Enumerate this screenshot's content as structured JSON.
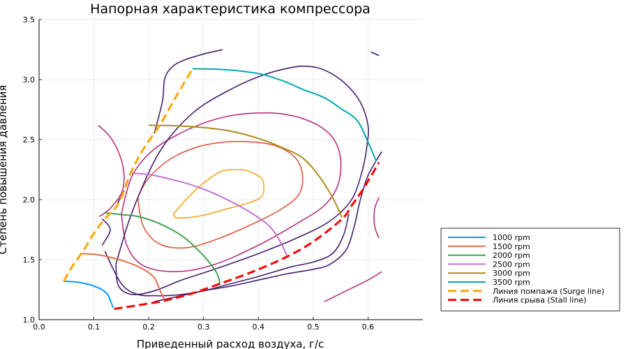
{
  "chart_data": {
    "type": "line",
    "title": "Напорная характеристика компрессора",
    "xlabel": "Приведенный расход воздуха, г/с",
    "ylabel": "Степень повышения давления",
    "xlim": [
      0.0,
      0.7
    ],
    "ylim": [
      1.0,
      3.5
    ],
    "xticks": [
      "0.0",
      "0.1",
      "0.2",
      "0.3",
      "0.4",
      "0.5",
      "0.6"
    ],
    "yticks": [
      "1.0",
      "1.5",
      "2.0",
      "2.5",
      "3.0",
      "3.5"
    ],
    "grid": true,
    "legend_position": "outside-bottom-right",
    "series": [
      {
        "name": "1000 rpm",
        "color": "#009AFA",
        "style": "solid",
        "x": [
          0.045,
          0.065,
          0.085,
          0.1,
          0.115,
          0.125,
          0.13,
          0.135
        ],
        "y": [
          1.32,
          1.315,
          1.3,
          1.28,
          1.25,
          1.21,
          1.16,
          1.1
        ]
      },
      {
        "name": "1500 rpm",
        "color": "#E36F47",
        "style": "solid",
        "x": [
          0.075,
          0.1,
          0.13,
          0.16,
          0.19,
          0.21,
          0.22,
          0.23
        ],
        "y": [
          1.55,
          1.545,
          1.52,
          1.48,
          1.42,
          1.35,
          1.25,
          1.15
        ]
      },
      {
        "name": "2000 rpm",
        "color": "#3EA44E",
        "style": "solid",
        "x": [
          0.12,
          0.15,
          0.18,
          0.22,
          0.26,
          0.29,
          0.31,
          0.325,
          0.33
        ],
        "y": [
          1.89,
          1.875,
          1.86,
          1.8,
          1.7,
          1.58,
          1.48,
          1.38,
          1.29
        ]
      },
      {
        "name": "2500 rpm",
        "color": "#C271D2",
        "style": "solid",
        "x": [
          0.167,
          0.2,
          0.24,
          0.28,
          0.32,
          0.36,
          0.39,
          0.42,
          0.44,
          0.453
        ],
        "y": [
          2.22,
          2.21,
          2.17,
          2.12,
          2.05,
          1.96,
          1.88,
          1.78,
          1.65,
          1.52
        ]
      },
      {
        "name": "3000 rpm",
        "color": "#AC8D18",
        "style": "solid",
        "x": [
          0.2,
          0.25,
          0.3,
          0.35,
          0.4,
          0.44,
          0.48,
          0.51,
          0.535,
          0.553
        ],
        "y": [
          2.62,
          2.615,
          2.6,
          2.57,
          2.51,
          2.44,
          2.35,
          2.2,
          2.02,
          1.85
        ]
      },
      {
        "name": "3500 rpm",
        "color": "#00A9AD",
        "style": "solid",
        "x": [
          0.28,
          0.33,
          0.37,
          0.41,
          0.45,
          0.48,
          0.52,
          0.55,
          0.58,
          0.6,
          0.615
        ],
        "y": [
          3.09,
          3.085,
          3.07,
          3.04,
          2.98,
          2.92,
          2.85,
          2.76,
          2.66,
          2.48,
          2.32
        ]
      },
      {
        "name": "Линия помпажа (Surge line)",
        "color": "#FFA500",
        "style": "dashed",
        "x": [
          0.045,
          0.06,
          0.08,
          0.1,
          0.12,
          0.145,
          0.167,
          0.19,
          0.22,
          0.25,
          0.28
        ],
        "y": [
          1.32,
          1.44,
          1.57,
          1.72,
          1.84,
          1.97,
          2.22,
          2.42,
          2.62,
          2.86,
          3.09
        ]
      },
      {
        "name": "Линия срыва (Stall line)",
        "color": "#FF0000",
        "style": "dashed",
        "x": [
          0.137,
          0.18,
          0.23,
          0.28,
          0.33,
          0.39,
          0.45,
          0.5,
          0.553,
          0.57,
          0.59,
          0.62
        ],
        "y": [
          1.09,
          1.12,
          1.16,
          1.22,
          1.3,
          1.4,
          1.52,
          1.65,
          1.84,
          1.95,
          2.08,
          2.31
        ]
      }
    ],
    "contours": [
      {
        "color": "#F8A41B",
        "x": [
          0.245,
          0.26,
          0.29,
          0.33,
          0.36,
          0.38,
          0.405,
          0.41,
          0.405,
          0.38,
          0.34,
          0.3,
          0.27,
          0.25,
          0.245
        ],
        "y": [
          1.88,
          1.96,
          2.1,
          2.23,
          2.25,
          2.24,
          2.18,
          2.1,
          2.02,
          1.97,
          1.92,
          1.87,
          1.85,
          1.85,
          1.88
        ]
      },
      {
        "color": "#E0553E",
        "x": [
          0.18,
          0.2,
          0.24,
          0.29,
          0.34,
          0.39,
          0.43,
          0.465,
          0.48,
          0.475,
          0.445,
          0.4,
          0.33,
          0.27,
          0.22,
          0.19,
          0.18
        ],
        "y": [
          2.02,
          2.18,
          2.34,
          2.44,
          2.48,
          2.48,
          2.45,
          2.36,
          2.22,
          2.05,
          1.93,
          1.82,
          1.68,
          1.6,
          1.63,
          1.78,
          2.02
        ]
      },
      {
        "color": "#B5307C",
        "x": [
          0.15,
          0.17,
          0.21,
          0.27,
          0.33,
          0.39,
          0.45,
          0.5,
          0.535,
          0.55,
          0.545,
          0.52,
          0.47,
          0.4,
          0.32,
          0.25,
          0.19,
          0.16,
          0.15
        ],
        "y": [
          1.88,
          2.2,
          2.42,
          2.58,
          2.68,
          2.72,
          2.71,
          2.64,
          2.52,
          2.34,
          2.12,
          1.95,
          1.8,
          1.62,
          1.46,
          1.4,
          1.45,
          1.62,
          1.88
        ]
      },
      {
        "color": "#431E6E",
        "x": [
          0.14,
          0.17,
          0.22,
          0.28,
          0.35,
          0.41,
          0.46,
          0.49,
          0.52,
          0.555,
          0.585,
          0.6,
          0.598,
          0.59,
          0.57,
          0.53,
          0.47,
          0.4,
          0.32,
          0.26,
          0.21,
          0.17,
          0.145,
          0.14
        ],
        "y": [
          1.46,
          1.9,
          2.4,
          2.72,
          2.92,
          3.04,
          3.1,
          3.11,
          3.08,
          2.98,
          2.82,
          2.62,
          2.45,
          2.25,
          2.0,
          1.82,
          1.68,
          1.55,
          1.42,
          1.33,
          1.24,
          1.21,
          1.28,
          1.46
        ]
      },
      {
        "color": "#431E6E",
        "x": [
          0.12,
          0.15,
          0.18,
          0.21,
          0.23,
          0.26,
          0.3,
          0.35,
          0.4,
          0.46,
          0.5,
          0.535,
          0.555,
          0.565
        ],
        "y": [
          1.57,
          1.3,
          1.21,
          1.2,
          1.2,
          1.21,
          1.24,
          1.3,
          1.36,
          1.44,
          1.48,
          1.55,
          1.7,
          1.88
        ]
      },
      {
        "color": "#431E6E",
        "x": [
          0.21,
          0.25,
          0.3,
          0.35,
          0.4,
          0.45,
          0.5,
          0.53,
          0.56,
          0.575,
          0.585,
          0.6,
          0.625
        ],
        "y": [
          1.15,
          1.19,
          1.24,
          1.28,
          1.33,
          1.38,
          1.42,
          1.46,
          1.58,
          1.78,
          1.98,
          2.2,
          2.4
        ]
      },
      {
        "color": "#431E6E",
        "x": [
          0.115,
          0.13,
          0.115
        ],
        "y": [
          1.62,
          1.75,
          1.84
        ]
      },
      {
        "color": "#431E6E",
        "x": [
          0.143,
          0.155,
          0.147
        ],
        "y": [
          1.97,
          2.07,
          2.03
        ]
      },
      {
        "color": "#431E6E",
        "x": [
          0.21,
          0.225,
          0.23,
          0.25,
          0.29,
          0.335
        ],
        "y": [
          2.55,
          2.82,
          3.02,
          3.13,
          3.2,
          3.25
        ]
      },
      {
        "color": "#431E6E",
        "x": [
          0.605,
          0.62
        ],
        "y": [
          3.23,
          3.2
        ]
      },
      {
        "color": "#B5307C",
        "x": [
          0.108,
          0.13,
          0.148,
          0.155,
          0.15,
          0.128,
          0.11
        ],
        "y": [
          2.62,
          2.52,
          2.36,
          2.2,
          2.05,
          1.92,
          1.86
        ]
      },
      {
        "color": "#B5307C",
        "x": [
          0.52,
          0.56,
          0.6,
          0.625
        ],
        "y": [
          1.15,
          1.24,
          1.33,
          1.4
        ]
      },
      {
        "color": "#B5307C",
        "x": [
          0.62,
          0.612,
          0.612,
          0.62
        ],
        "y": [
          2.02,
          1.92,
          1.78,
          1.68
        ]
      }
    ]
  }
}
